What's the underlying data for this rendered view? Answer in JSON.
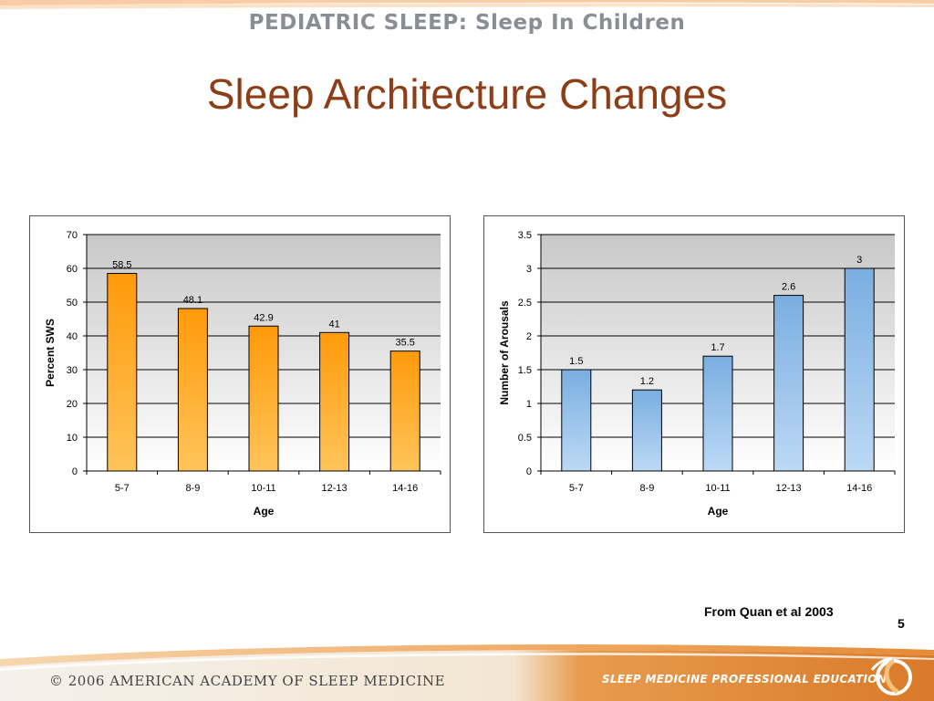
{
  "header": {
    "title": "PEDIATRIC SLEEP: Sleep In Children"
  },
  "slide": {
    "title": "Sleep Architecture Changes",
    "source_note": "From Quan et al 2003",
    "page_number": "5"
  },
  "footer": {
    "left_text": "© 2006  AMERICAN ACADEMY OF SLEEP MEDICINE",
    "right_text": "SLEEP MEDICINE PROFESSIONAL EDUCATION"
  },
  "colors": {
    "title": "#8e3e17",
    "orange_bar_top": "#ff9a0a",
    "orange_bar_bottom": "#ffc45a",
    "blue_bar_top": "#7aaee0",
    "blue_bar_bottom": "#bcd9f5",
    "plot_bg_top": "#c8c8c8",
    "plot_bg_bottom": "#ffffff",
    "swoosh": "#f2a35a"
  },
  "chart_data": [
    {
      "type": "bar",
      "categories": [
        "5-7",
        "8-9",
        "10-11",
        "12-13",
        "14-16"
      ],
      "values": [
        58.5,
        48.1,
        42.9,
        41,
        35.5
      ],
      "value_labels": [
        "58.5",
        "48.1",
        "42.9",
        "41",
        "35.5"
      ],
      "xlabel": "Age",
      "ylabel": "Percent SWS",
      "ylim": [
        0,
        70
      ],
      "yticks": [
        0,
        10,
        20,
        30,
        40,
        50,
        60,
        70
      ],
      "ytick_labels": [
        "0",
        "10",
        "20",
        "30",
        "40",
        "50",
        "60",
        "70"
      ],
      "grid": true,
      "color": "orange"
    },
    {
      "type": "bar",
      "categories": [
        "5-7",
        "8-9",
        "10-11",
        "12-13",
        "14-16"
      ],
      "values": [
        1.5,
        1.2,
        1.7,
        2.6,
        3
      ],
      "value_labels": [
        "1.5",
        "1.2",
        "1.7",
        "2.6",
        "3"
      ],
      "xlabel": "Age",
      "ylabel": "Number of Arousals",
      "ylim": [
        0,
        3.5
      ],
      "yticks": [
        0,
        0.5,
        1,
        1.5,
        2,
        2.5,
        3,
        3.5
      ],
      "ytick_labels": [
        "0",
        "0.5",
        "1",
        "1.5",
        "2",
        "2.5",
        "3",
        "3.5"
      ],
      "grid": true,
      "color": "blue"
    }
  ]
}
